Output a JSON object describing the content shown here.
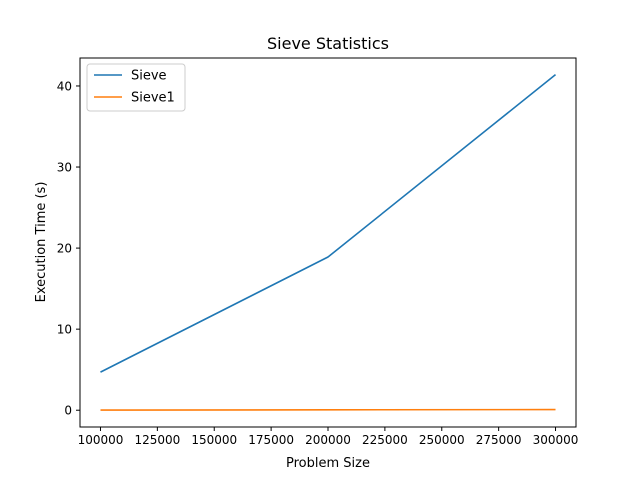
{
  "chart_data": {
    "type": "line",
    "title": "Sieve Statistics",
    "xlabel": "Problem Size",
    "ylabel": "Execution Time (s)",
    "xlim": [
      91000,
      309000
    ],
    "ylim": [
      -2.07,
      43.45
    ],
    "xticks": [
      100000,
      125000,
      150000,
      175000,
      200000,
      225000,
      250000,
      275000,
      300000
    ],
    "yticks": [
      0,
      10,
      20,
      30,
      40
    ],
    "grid": false,
    "legend_position": "upper-left",
    "series": [
      {
        "name": "Sieve",
        "color": "#1f77b4",
        "x": [
          100000,
          200000,
          300000
        ],
        "y": [
          4.7,
          18.9,
          41.4
        ]
      },
      {
        "name": "Sieve1",
        "color": "#ff7f0e",
        "x": [
          100000,
          200000,
          300000
        ],
        "y": [
          0.02,
          0.05,
          0.08
        ]
      }
    ]
  }
}
